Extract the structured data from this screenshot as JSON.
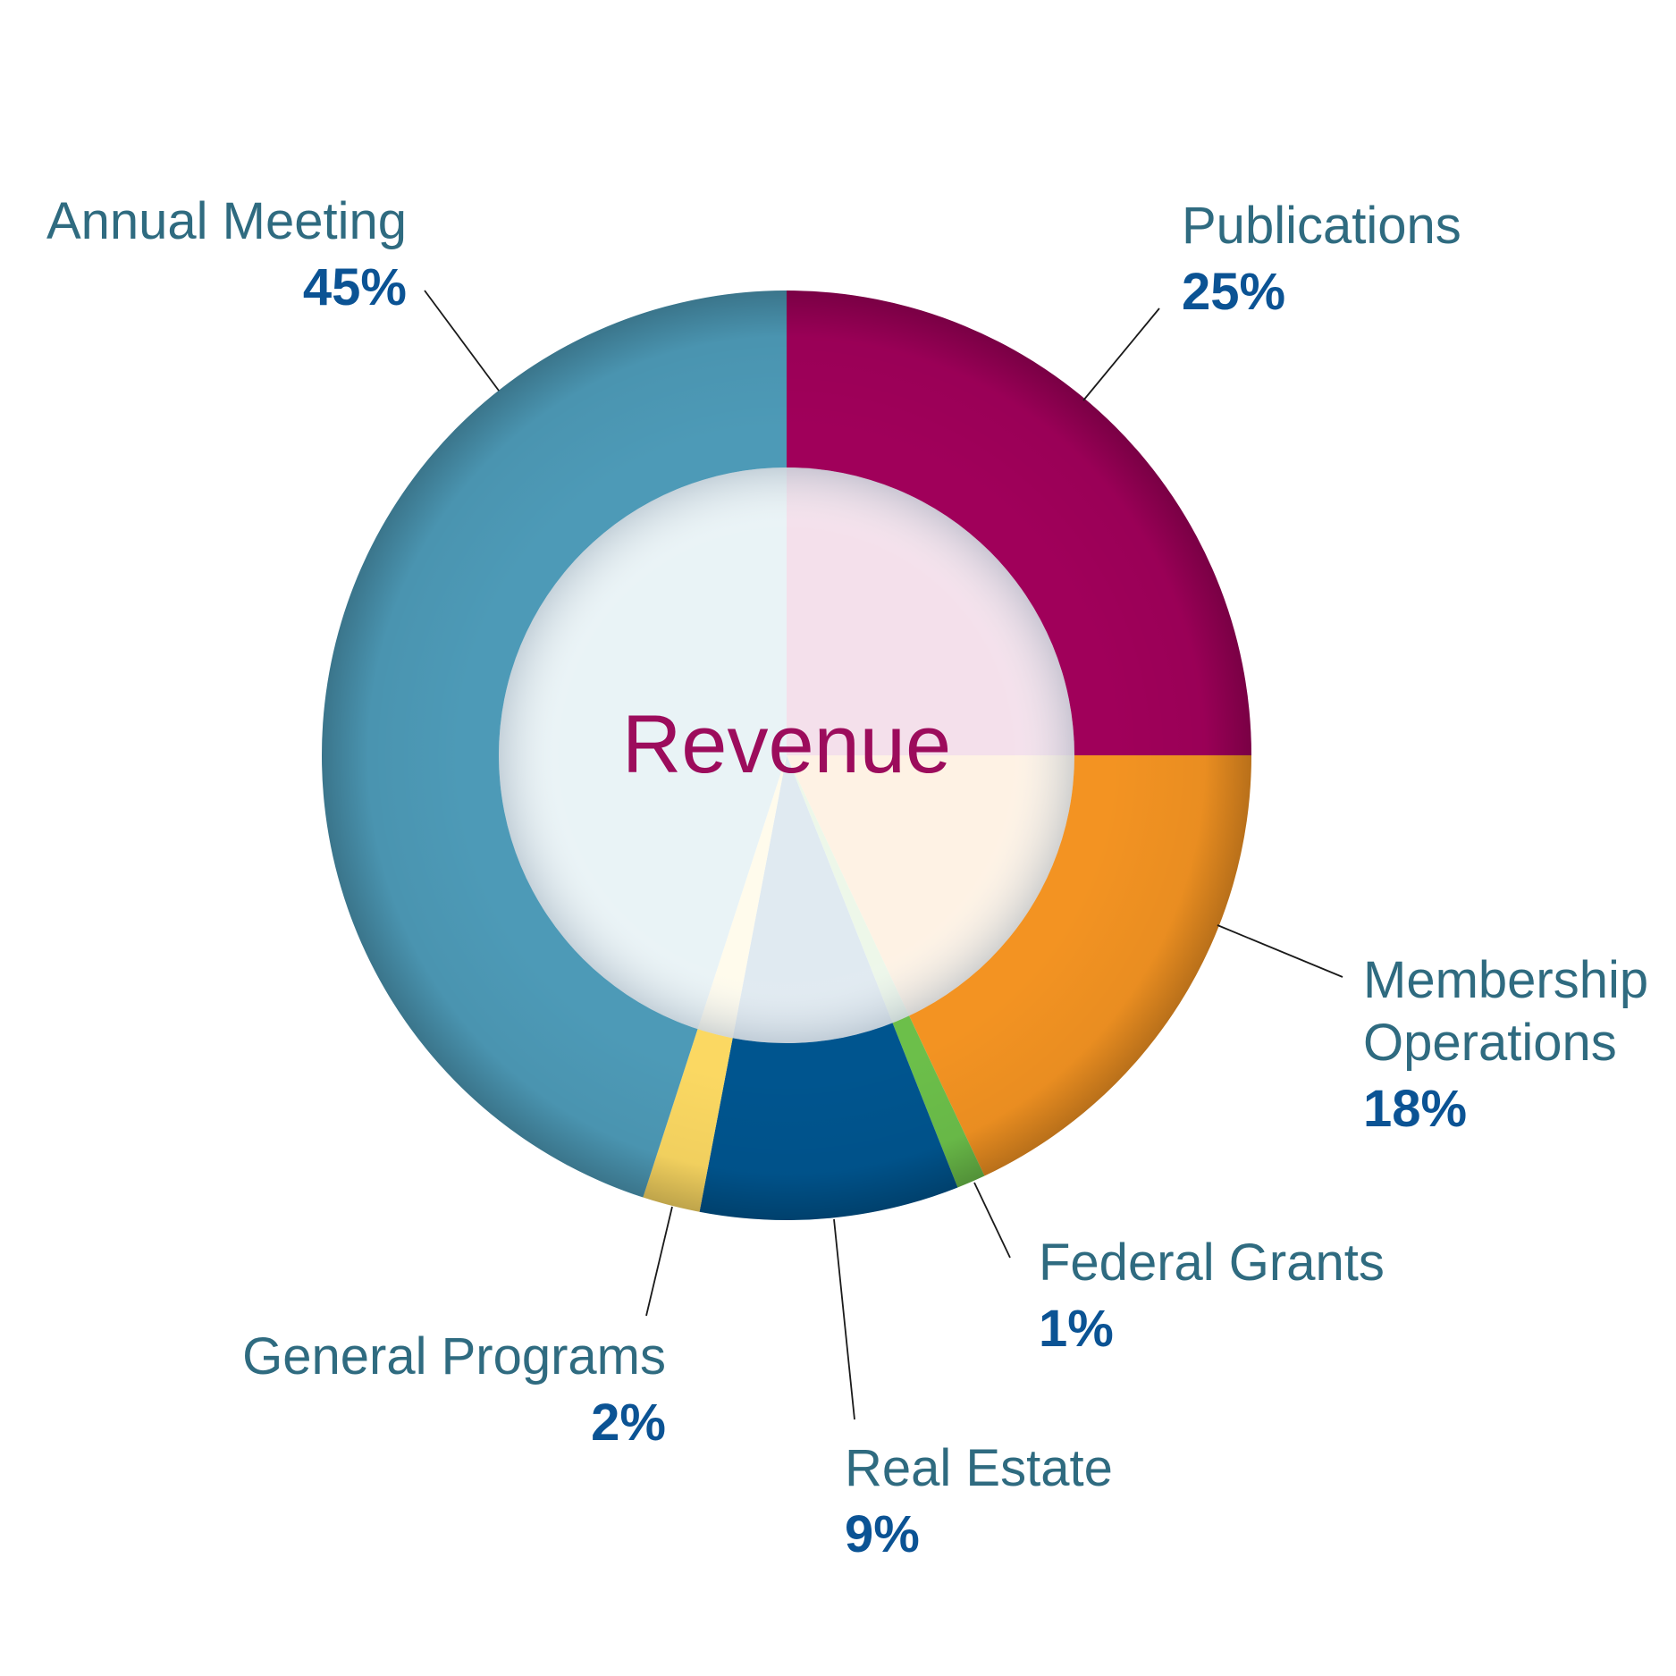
{
  "chart_data": {
    "type": "pie",
    "title": "Revenue",
    "slices": [
      {
        "label": "Publications",
        "label_lines": [
          "Publications"
        ],
        "value": 25,
        "value_label": "25%",
        "color": "#a0005a"
      },
      {
        "label": "Membership Operations",
        "label_lines": [
          "Membership",
          "Operations"
        ],
        "value": 18,
        "value_label": "18%",
        "color": "#f39322"
      },
      {
        "label": "Federal Grants",
        "label_lines": [
          "Federal Grants"
        ],
        "value": 1,
        "value_label": "1%",
        "color": "#6cbf4a"
      },
      {
        "label": "Real Estate",
        "label_lines": [
          "Real Estate"
        ],
        "value": 9,
        "value_label": "9%",
        "color": "#00558f"
      },
      {
        "label": "General Programs",
        "label_lines": [
          "General Programs"
        ],
        "value": 2,
        "value_label": "2%",
        "color": "#fbd862"
      },
      {
        "label": "Annual Meeting",
        "label_lines": [
          "Annual Meeting"
        ],
        "value": 45,
        "value_label": "45%",
        "color": "#4d9ab7"
      }
    ],
    "legend": "none"
  }
}
